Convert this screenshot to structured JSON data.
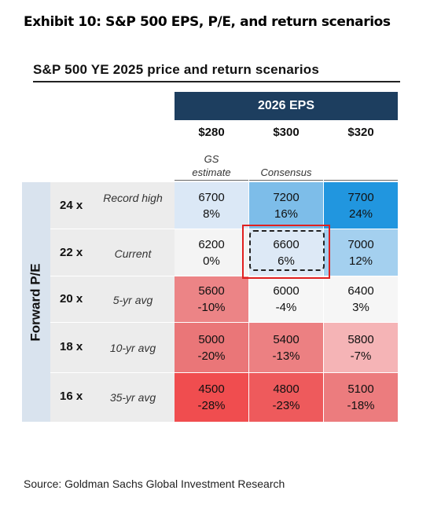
{
  "exhibit_title": "Exhibit 10: S&P 500 EPS, P/E, and return scenarios",
  "table_title": "S&P 500 YE 2025 price and return scenarios",
  "eps_header": "2026 EPS",
  "row_axis_label": "Forward P/E",
  "columns": [
    {
      "label": "$280",
      "sub": "GS estimate"
    },
    {
      "label": "$300",
      "sub": "Consensus"
    },
    {
      "label": "$320",
      "sub": ""
    }
  ],
  "rows": [
    {
      "multiple": "24 x",
      "label": "Record high",
      "cells": [
        {
          "price": "6700",
          "ret": "8%",
          "color": "#dbe8f6"
        },
        {
          "price": "7200",
          "ret": "16%",
          "color": "#7dbde9"
        },
        {
          "price": "7700",
          "ret": "24%",
          "color": "#2196df"
        }
      ]
    },
    {
      "multiple": "22 x",
      "label": "Current",
      "cells": [
        {
          "price": "6200",
          "ret": "0%",
          "color": "#f4f4f4"
        },
        {
          "price": "6600",
          "ret": "6%",
          "color": "#dde9f6"
        },
        {
          "price": "7000",
          "ret": "12%",
          "color": "#a4d0ef"
        }
      ]
    },
    {
      "multiple": "20 x",
      "label": "5-yr avg",
      "cells": [
        {
          "price": "5600",
          "ret": "-10%",
          "color": "#ec8486"
        },
        {
          "price": "6000",
          "ret": "-4%",
          "color": "#f6f6f6"
        },
        {
          "price": "6400",
          "ret": "3%",
          "color": "#f6f6f6"
        }
      ]
    },
    {
      "multiple": "18 x",
      "label": "10-yr avg",
      "cells": [
        {
          "price": "5000",
          "ret": "-20%",
          "color": "#ea7678"
        },
        {
          "price": "5400",
          "ret": "-13%",
          "color": "#ec8082"
        },
        {
          "price": "5800",
          "ret": "-7%",
          "color": "#f5b4b6"
        }
      ]
    },
    {
      "multiple": "16 x",
      "label": "35-yr avg",
      "cells": [
        {
          "price": "4500",
          "ret": "-28%",
          "color": "#f04d4f"
        },
        {
          "price": "4800",
          "ret": "-23%",
          "color": "#ee5a5c"
        },
        {
          "price": "5100",
          "ret": "-18%",
          "color": "#ec7c7e"
        }
      ]
    }
  ],
  "source": "Source: Goldman Sachs Global Investment Research"
}
